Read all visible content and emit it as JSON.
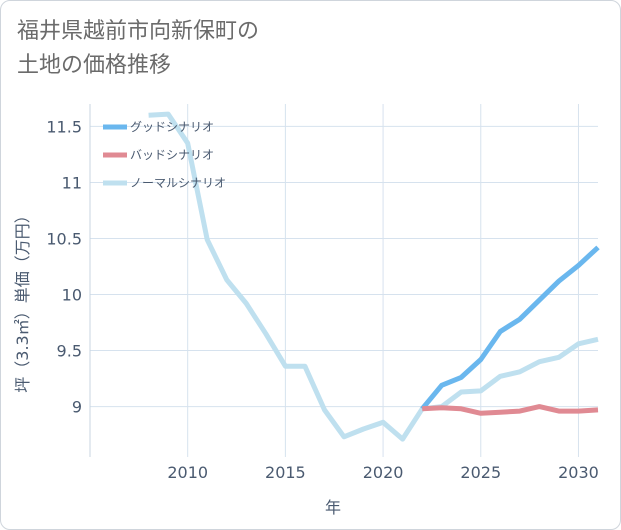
{
  "title_lines": [
    "福井県越前市向新保町の",
    "土地の価格推移"
  ],
  "chart_data": {
    "type": "line",
    "title": "福井県越前市向新保町の土地の価格推移",
    "xlabel": "年",
    "ylabel": "坪（3.3㎡）単価（万円）",
    "xlim": [
      2005,
      2031
    ],
    "ylim": [
      8.55,
      11.7
    ],
    "x_ticks": [
      2010,
      2015,
      2020,
      2025,
      2030
    ],
    "y_ticks": [
      9,
      9.5,
      10,
      10.5,
      11,
      11.5
    ],
    "x_tick_labels": [
      "2010",
      "2015",
      "2020",
      "2025",
      "2030"
    ],
    "y_tick_labels": [
      "9",
      "9.5",
      "10",
      "10.5",
      "11",
      "11.5"
    ],
    "grid": true,
    "legend_position": "top-left",
    "series": [
      {
        "name": "グッドシナリオ",
        "color": "#6ab7ee",
        "x": [
          2022,
          2023,
          2024,
          2025,
          2026,
          2027,
          2028,
          2029,
          2030,
          2031
        ],
        "y": [
          8.98,
          9.19,
          9.26,
          9.42,
          9.67,
          9.78,
          9.95,
          10.12,
          10.26,
          10.42
        ]
      },
      {
        "name": "バッドシナリオ",
        "color": "#e08a93",
        "x": [
          2022,
          2023,
          2024,
          2025,
          2026,
          2027,
          2028,
          2029,
          2030,
          2031
        ],
        "y": [
          8.98,
          8.99,
          8.98,
          8.94,
          8.95,
          8.96,
          9.0,
          8.96,
          8.96,
          8.97
        ]
      },
      {
        "name": "ノーマルシナリオ",
        "color": "#bfe0ef",
        "x": [
          2008,
          2009,
          2010,
          2011,
          2012,
          2013,
          2014,
          2015,
          2016,
          2017,
          2018,
          2019,
          2020,
          2021,
          2022,
          2023,
          2024,
          2025,
          2026,
          2027,
          2028,
          2029,
          2030,
          2031
        ],
        "y": [
          11.6,
          11.61,
          11.35,
          10.49,
          10.13,
          9.92,
          9.65,
          9.36,
          9.36,
          8.97,
          8.73,
          8.8,
          8.86,
          8.71,
          8.98,
          9.0,
          9.13,
          9.14,
          9.27,
          9.31,
          9.4,
          9.44,
          9.56,
          9.6
        ]
      }
    ]
  }
}
